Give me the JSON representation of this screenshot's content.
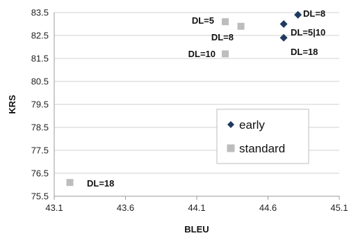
{
  "chart_data": {
    "type": "scatter",
    "xlabel": "BLEU",
    "ylabel": "KRS",
    "xlim": [
      43.1,
      45.1
    ],
    "ylim": [
      75.5,
      83.5
    ],
    "xticks": [
      "43.1",
      "43.6",
      "44.1",
      "44.6",
      "45.1"
    ],
    "yticks": [
      "75.5",
      "76.5",
      "77.5",
      "78.5",
      "79.5",
      "80.5",
      "81.5",
      "82.5",
      "83.5"
    ],
    "grid": "horizontal",
    "legend_position": "center-right",
    "series": [
      {
        "name": "early",
        "marker": "diamond",
        "color": "#1f3a5f",
        "points": [
          {
            "x": 44.81,
            "y": 83.4
          },
          {
            "x": 44.71,
            "y": 83.0
          },
          {
            "x": 44.71,
            "y": 82.4
          }
        ]
      },
      {
        "name": "standard",
        "marker": "square",
        "color": "#bdbdbd",
        "points": [
          {
            "x": 44.3,
            "y": 83.1
          },
          {
            "x": 44.41,
            "y": 82.9
          },
          {
            "x": 44.3,
            "y": 81.7
          },
          {
            "x": 43.21,
            "y": 76.1
          }
        ]
      }
    ],
    "annotations": [
      {
        "text": "DL=8"
      },
      {
        "text": "DL=5|10"
      },
      {
        "text": "DL=18"
      },
      {
        "text": "DL=5"
      },
      {
        "text": "DL=8"
      },
      {
        "text": "DL=10"
      },
      {
        "text": "DL=18"
      }
    ]
  }
}
